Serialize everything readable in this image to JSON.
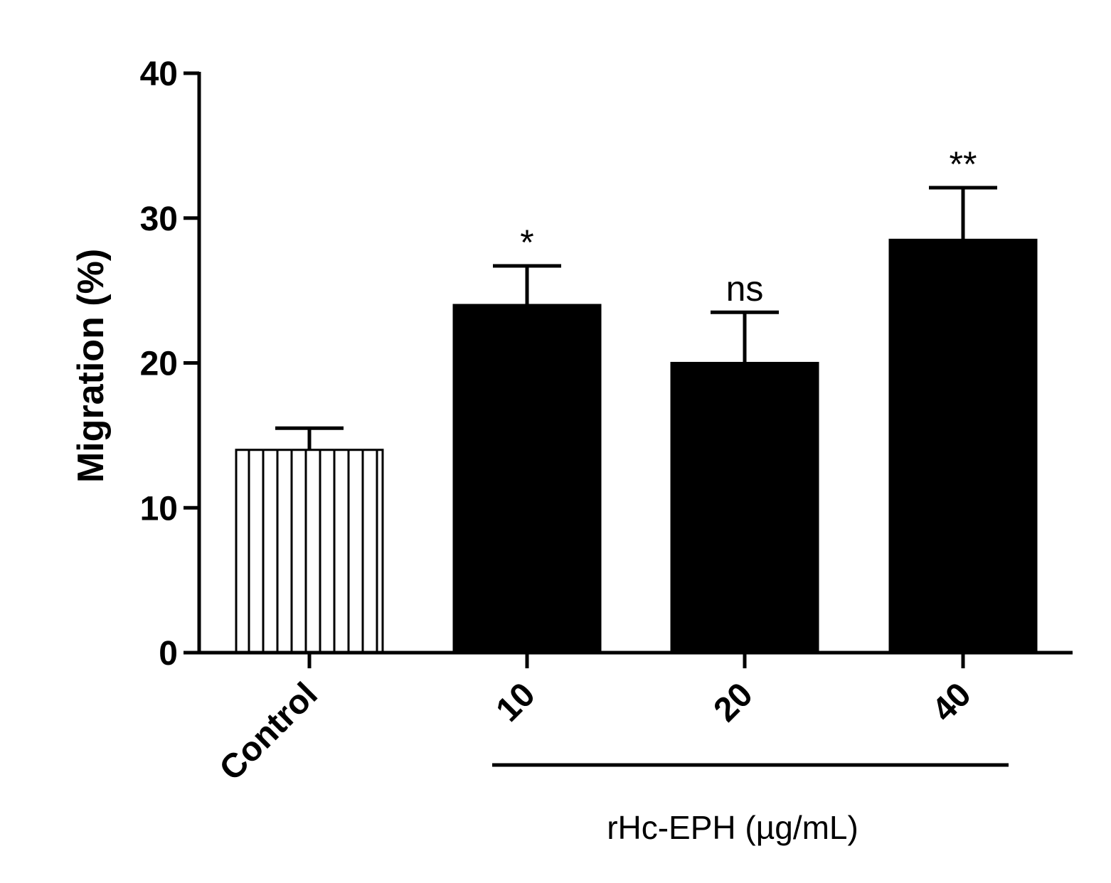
{
  "chart_data": {
    "type": "bar",
    "title": "",
    "xlabel": "",
    "ylabel": "Migration (%)",
    "ylim": [
      0,
      40
    ],
    "yticks": [
      "0",
      "10",
      "20",
      "30",
      "40"
    ],
    "categories": [
      "Control",
      "10",
      "20",
      "40"
    ],
    "values": [
      14,
      24,
      20,
      28.5
    ],
    "errors": [
      1.5,
      2.7,
      3.5,
      3.6
    ],
    "annotations": [
      "",
      "*",
      "ns",
      "**"
    ],
    "bar_styles": [
      "hatched",
      "solid",
      "solid",
      "solid"
    ],
    "group_label": "rHc-EPH (µg/mL)",
    "colors": {
      "solid_fill": "#000000",
      "hatch_fill": "#ffffff",
      "axis": "#000000"
    }
  }
}
